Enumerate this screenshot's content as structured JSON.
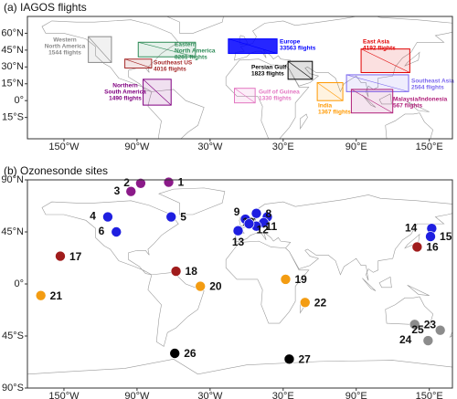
{
  "panel_a": {
    "title": "(a) IAGOS flights",
    "xlim": [
      -180,
      169
    ],
    "ylim": [
      -34,
      75
    ],
    "xticks": [
      {
        "value": -150,
        "label": "150°W"
      },
      {
        "value": -90,
        "label": "90°W"
      },
      {
        "value": -30,
        "label": "30°W"
      },
      {
        "value": 30,
        "label": "30°E"
      },
      {
        "value": 90,
        "label": "90°E"
      },
      {
        "value": 150,
        "label": "150°E"
      }
    ],
    "yticks": [
      {
        "value": -15,
        "label": "15°S"
      },
      {
        "value": 0,
        "label": "0°"
      },
      {
        "value": 15,
        "label": "15°N"
      },
      {
        "value": 30,
        "label": "30°N"
      },
      {
        "value": 45,
        "label": "45°N"
      },
      {
        "value": 60,
        "label": "60°N"
      }
    ],
    "regions": [
      {
        "name_lines": [
          "Western",
          "North America"
        ],
        "flights": "1544 flights",
        "color": "#8a8a8a",
        "lon": [
          -130,
          -111
        ],
        "lat": [
          34,
          57
        ]
      },
      {
        "name_lines": [
          "Eastern",
          "North America"
        ],
        "flights": "8281 flights",
        "color": "#2e8b57",
        "lon": [
          -89,
          -42
        ],
        "lat": [
          39,
          52
        ]
      },
      {
        "name_lines": [
          "Southeast US"
        ],
        "flights": "4016 flights",
        "color": "#a52a2a",
        "lon": [
          -100,
          -78
        ],
        "lat": [
          29,
          37
        ]
      },
      {
        "name_lines": [
          "Northern",
          "South America"
        ],
        "flights": "1490 flights",
        "color": "#800080",
        "lon": [
          -85,
          -62
        ],
        "lat": [
          -4,
          19
        ]
      },
      {
        "name_lines": [
          "Europe"
        ],
        "flights": "33563 flights",
        "color": "#0000ff",
        "lon": [
          -15,
          25
        ],
        "lat": [
          42,
          55
        ]
      },
      {
        "name_lines": [
          "Persian Gulf"
        ],
        "flights": "1823 flights",
        "color": "#000000",
        "lon": [
          34,
          54
        ],
        "lat": [
          19,
          35
        ]
      },
      {
        "name_lines": [
          "Gulf of Guinea"
        ],
        "flights": "1330 flights",
        "color": "#e377c2",
        "lon": [
          -10,
          7
        ],
        "lat": [
          -2,
          11
        ]
      },
      {
        "name_lines": [
          "India"
        ],
        "flights": "1367 flights",
        "color": "#ff9900",
        "lon": [
          58,
          79
        ],
        "lat": [
          0,
          16
        ]
      },
      {
        "name_lines": [
          "East Asia"
        ],
        "flights": "4192 flights",
        "color": "#e00000",
        "lon": [
          94,
          134
        ],
        "lat": [
          25,
          46
        ]
      },
      {
        "name_lines": [
          "Southeast Asia"
        ],
        "flights": "2564 flights",
        "color": "#7b68ee",
        "lon": [
          82,
          133
        ],
        "lat": [
          8,
          23
        ]
      },
      {
        "name_lines": [
          "Malaysia/Indonesia"
        ],
        "flights": "567 flights",
        "color": "#b0207a",
        "lon": [
          86,
          120
        ],
        "lat": [
          -11,
          10
        ]
      }
    ]
  },
  "panel_b": {
    "title": "(b) Ozonesonde sites",
    "xlim": [
      -180,
      169
    ],
    "ylim": [
      -90,
      90
    ],
    "xticks": [
      {
        "value": -150,
        "label": "150°W"
      },
      {
        "value": -90,
        "label": "90°W"
      },
      {
        "value": -30,
        "label": "30°W"
      },
      {
        "value": 30,
        "label": "30°E"
      },
      {
        "value": 90,
        "label": "90°E"
      },
      {
        "value": 150,
        "label": "150°E"
      }
    ],
    "yticks": [
      {
        "value": -90,
        "label": "90°S"
      },
      {
        "value": -45,
        "label": "45°S"
      },
      {
        "value": 0,
        "label": "0°"
      },
      {
        "value": 45,
        "label": "45°N"
      },
      {
        "value": 90,
        "label": "90°N"
      }
    ],
    "sites": [
      {
        "label": "1",
        "lon": -64,
        "lat": 88,
        "color": "#8b1a89"
      },
      {
        "label": "2",
        "lon": -87,
        "lat": 87,
        "color": "#8b1a89"
      },
      {
        "label": "3",
        "lon": -95,
        "lat": 80,
        "color": "#8b1a89"
      },
      {
        "label": "4",
        "lon": -114,
        "lat": 58,
        "color": "#1f1fe0"
      },
      {
        "label": "5",
        "lon": -62,
        "lat": 58,
        "color": "#1f1fe0"
      },
      {
        "label": "6",
        "lon": -107,
        "lat": 45,
        "color": "#1f1fe0"
      },
      {
        "label": "7",
        "lon": 17,
        "lat": 58,
        "color": "#1f1fe0"
      },
      {
        "label": "8",
        "lon": 8,
        "lat": 61,
        "color": "#1f1fe0"
      },
      {
        "label": "9",
        "lon": -1,
        "lat": 56,
        "color": "#1f1fe0"
      },
      {
        "label": "10",
        "lon": 14,
        "lat": 53,
        "color": "#1f1fe0"
      },
      {
        "label": "11",
        "lon": 8,
        "lat": 50,
        "color": "#1f1fe0"
      },
      {
        "label": "12",
        "lon": 2,
        "lat": 52,
        "color": "#1f1fe0"
      },
      {
        "label": "13",
        "lon": -7,
        "lat": 46,
        "color": "#1f1fe0"
      },
      {
        "label": "14",
        "lon": 152,
        "lat": 48,
        "color": "#1f1fe0"
      },
      {
        "label": "15",
        "lon": 151,
        "lat": 41,
        "color": "#1f1fe0"
      },
      {
        "label": "16",
        "lon": 140,
        "lat": 32,
        "color": "#a01c1c"
      },
      {
        "label": "17",
        "lon": -153,
        "lat": 24,
        "color": "#a01c1c"
      },
      {
        "label": "18",
        "lon": -58,
        "lat": 11,
        "color": "#a01c1c"
      },
      {
        "label": "19",
        "lon": 32,
        "lat": 4,
        "color": "#f39c12"
      },
      {
        "label": "20",
        "lon": -38,
        "lat": -2,
        "color": "#f39c12"
      },
      {
        "label": "21",
        "lon": -169,
        "lat": -10,
        "color": "#f39c12"
      },
      {
        "label": "22",
        "lon": 48,
        "lat": -16,
        "color": "#f39c12"
      },
      {
        "label": "23",
        "lon": 138,
        "lat": -35,
        "color": "#8c8c8c"
      },
      {
        "label": "24",
        "lon": 149,
        "lat": -49,
        "color": "#8c8c8c"
      },
      {
        "label": "25",
        "lon": 159,
        "lat": -40,
        "color": "#8c8c8c"
      },
      {
        "label": "26",
        "lon": -59,
        "lat": -60,
        "color": "#000000"
      },
      {
        "label": "27",
        "lon": 35,
        "lat": -65,
        "color": "#000000"
      }
    ]
  }
}
